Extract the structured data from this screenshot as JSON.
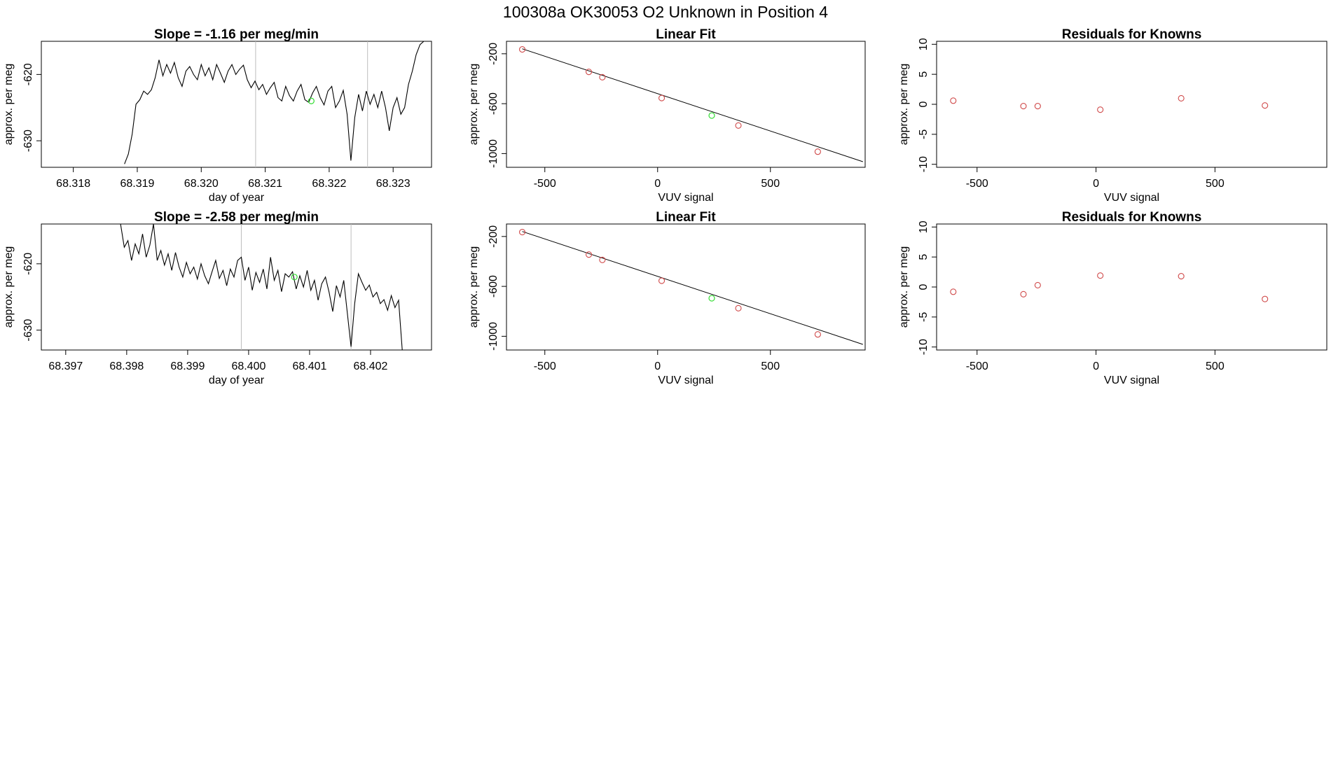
{
  "figure_title": "100308a      OK30053   O2 Unknown in Position  4",
  "colors": {
    "known": "#d04a4a",
    "unknown": "#33dd33",
    "line": "#000000",
    "marker_line": "#bdbdbd"
  },
  "chart_data": [
    {
      "type": "line",
      "title": "Slope =  -1.16  per meg/min",
      "xlabel": "day of year",
      "ylabel": "approx. per meg",
      "xlim": [
        68.3175,
        68.3236
      ],
      "ylim": [
        -634,
        -615
      ],
      "xticks": [
        68.318,
        68.319,
        68.32,
        68.321,
        68.322,
        68.323
      ],
      "xtick_labels": [
        "68.318",
        "68.319",
        "68.320",
        "68.321",
        "68.322",
        "68.323"
      ],
      "yticks": [
        -630,
        -620
      ],
      "ytick_labels": [
        "-630",
        "-620"
      ],
      "vlines": [
        68.32085,
        68.3226
      ],
      "series_x": [
        68.3188,
        68.31886,
        68.31892,
        68.31898,
        68.31904,
        68.3191,
        68.31916,
        68.31922,
        68.31928,
        68.31934,
        68.3194,
        68.31946,
        68.31952,
        68.31958,
        68.31964,
        68.3197,
        68.31976,
        68.31982,
        68.31988,
        68.31994,
        68.32,
        68.32006,
        68.32012,
        68.32018,
        68.32024,
        68.3203,
        68.32036,
        68.32042,
        68.32048,
        68.32054,
        68.3206,
        68.32066,
        68.32072,
        68.32078,
        68.32084,
        68.3209,
        68.32096,
        68.32102,
        68.32108,
        68.32114,
        68.3212,
        68.32126,
        68.32132,
        68.32138,
        68.32144,
        68.3215,
        68.32156,
        68.32162,
        68.32168,
        68.32174,
        68.3218,
        68.32186,
        68.32192,
        68.32198,
        68.32204,
        68.3221,
        68.32216,
        68.32222,
        68.32228,
        68.32234,
        68.3224,
        68.32246,
        68.32252,
        68.32258,
        68.32264,
        68.3227,
        68.32276,
        68.32282,
        68.32288,
        68.32294,
        68.323,
        68.32306,
        68.32312,
        68.32318,
        68.32324,
        68.3233,
        68.32336,
        68.32342,
        68.32348
      ],
      "series_y": [
        -633.5,
        -632.0,
        -629.0,
        -624.5,
        -623.8,
        -622.5,
        -623.0,
        -622.3,
        -620.5,
        -617.8,
        -620.2,
        -618.5,
        -619.8,
        -618.2,
        -620.5,
        -621.8,
        -619.5,
        -618.8,
        -620.0,
        -620.8,
        -618.5,
        -620.2,
        -619.0,
        -620.8,
        -618.5,
        -619.8,
        -621.2,
        -619.5,
        -618.5,
        -620.0,
        -619.2,
        -618.6,
        -620.8,
        -622.0,
        -621.0,
        -622.3,
        -621.5,
        -623.0,
        -622.0,
        -621.2,
        -623.5,
        -624.0,
        -621.8,
        -623.2,
        -624.0,
        -622.5,
        -621.5,
        -623.8,
        -624.2,
        -622.8,
        -621.8,
        -623.5,
        -624.6,
        -622.5,
        -621.8,
        -625.0,
        -624.0,
        -622.4,
        -626.0,
        -633.0,
        -626.5,
        -623.0,
        -625.5,
        -622.5,
        -624.5,
        -623.0,
        -625.0,
        -622.5,
        -625.0,
        -628.5,
        -625.0,
        -623.5,
        -626.0,
        -625.0,
        -621.5,
        -619.5,
        -617.0,
        -615.5,
        -615.0
      ],
      "unknown_point": {
        "x": 68.32172,
        "y": -624.0
      }
    },
    {
      "type": "scatter",
      "title": "Linear Fit",
      "xlabel": "VUV signal",
      "ylabel": "approx. per meg",
      "xlim": [
        -670,
        920
      ],
      "ylim": [
        -1110,
        -100
      ],
      "xticks": [
        -500,
        0,
        500
      ],
      "xtick_labels": [
        "-500",
        "0",
        "500"
      ],
      "yticks": [
        -1000,
        -600,
        -200
      ],
      "ytick_labels": [
        "-1000",
        "-600",
        "-200"
      ],
      "fit_line": {
        "x1": -600,
        "y1": -160,
        "x2": 910,
        "y2": -1065
      },
      "known_points": [
        {
          "x": -600,
          "y": -165
        },
        {
          "x": -305,
          "y": -345
        },
        {
          "x": -245,
          "y": -388
        },
        {
          "x": 18,
          "y": -555
        },
        {
          "x": 358,
          "y": -775
        },
        {
          "x": 710,
          "y": -985
        }
      ],
      "unknown_point": {
        "x": 240,
        "y": -695
      }
    },
    {
      "type": "scatter",
      "title": "Residuals for Knowns",
      "xlabel": "VUV signal",
      "ylabel": "approx. per meg",
      "xlim": [
        -670,
        970
      ],
      "ylim": [
        -10.5,
        10.5
      ],
      "xticks": [
        -500,
        0,
        500
      ],
      "xtick_labels": [
        "-500",
        "0",
        "500"
      ],
      "yticks": [
        -10,
        -5,
        0,
        5,
        10
      ],
      "ytick_labels": [
        "-10",
        "-5",
        "0",
        "5",
        "10"
      ],
      "points": [
        {
          "x": -600,
          "y": 0.6
        },
        {
          "x": -305,
          "y": -0.3
        },
        {
          "x": -245,
          "y": -0.3
        },
        {
          "x": 18,
          "y": -0.9
        },
        {
          "x": 358,
          "y": 1.0
        },
        {
          "x": 710,
          "y": -0.2
        }
      ]
    },
    {
      "type": "line",
      "title": "Slope =  -2.58  per meg/min",
      "xlabel": "day of year",
      "ylabel": "approx. per meg",
      "xlim": [
        68.3966,
        68.403
      ],
      "ylim": [
        -633,
        -614
      ],
      "xticks": [
        68.397,
        68.398,
        68.399,
        68.4,
        68.401,
        68.402
      ],
      "xtick_labels": [
        "68.397",
        "68.398",
        "68.399",
        "68.400",
        "68.401",
        "68.402"
      ],
      "yticks": [
        -630,
        -620
      ],
      "ytick_labels": [
        "-630",
        "-620"
      ],
      "vlines": [
        68.39988,
        68.40168
      ],
      "series_x": [
        68.3979,
        68.39796,
        68.39802,
        68.39808,
        68.39814,
        68.3982,
        68.39826,
        68.39832,
        68.39838,
        68.39844,
        68.3985,
        68.39856,
        68.39862,
        68.39868,
        68.39874,
        68.3988,
        68.39886,
        68.39892,
        68.39898,
        68.39904,
        68.3991,
        68.39916,
        68.39922,
        68.39928,
        68.39934,
        68.3994,
        68.39946,
        68.39952,
        68.39958,
        68.39964,
        68.3997,
        68.39976,
        68.39982,
        68.39988,
        68.39994,
        68.4,
        68.40006,
        68.40012,
        68.40018,
        68.40024,
        68.4003,
        68.40036,
        68.40042,
        68.40048,
        68.40054,
        68.4006,
        68.40066,
        68.40072,
        68.40078,
        68.40084,
        68.4009,
        68.40096,
        68.40102,
        68.40108,
        68.40114,
        68.4012,
        68.40126,
        68.40132,
        68.40138,
        68.40144,
        68.4015,
        68.40156,
        68.40162,
        68.40168,
        68.40174,
        68.4018,
        68.40186,
        68.40192,
        68.40198,
        68.40204,
        68.4021,
        68.40216,
        68.40222,
        68.40228,
        68.40234,
        68.4024,
        68.40246,
        68.40252
      ],
      "series_y": [
        -614.0,
        -617.5,
        -616.5,
        -619.5,
        -617.0,
        -618.5,
        -615.5,
        -619.0,
        -617.2,
        -614.0,
        -619.5,
        -618.0,
        -620.2,
        -618.5,
        -621.0,
        -618.3,
        -620.5,
        -622.0,
        -619.8,
        -621.5,
        -620.5,
        -622.3,
        -620.0,
        -621.8,
        -623.0,
        -621.2,
        -619.5,
        -622.2,
        -621.0,
        -623.3,
        -620.8,
        -622.0,
        -619.5,
        -619.0,
        -622.5,
        -620.5,
        -624.0,
        -621.3,
        -622.8,
        -620.8,
        -623.8,
        -619.0,
        -622.5,
        -621.0,
        -624.2,
        -621.5,
        -622.0,
        -621.2,
        -623.8,
        -621.8,
        -623.5,
        -621.0,
        -624.0,
        -622.5,
        -625.5,
        -623.0,
        -622.0,
        -624.3,
        -627.2,
        -623.3,
        -625.0,
        -622.5,
        -627.5,
        -632.5,
        -626.0,
        -621.5,
        -622.8,
        -624.0,
        -623.2,
        -625.0,
        -624.3,
        -626.0,
        -625.4,
        -627.0,
        -624.8,
        -626.6,
        -625.5,
        -633.0
      ],
      "unknown_point": {
        "x": 68.40075,
        "y": -622.0
      }
    },
    {
      "type": "scatter",
      "title": "Linear Fit",
      "xlabel": "VUV signal",
      "ylabel": "approx. per meg",
      "xlim": [
        -670,
        920
      ],
      "ylim": [
        -1110,
        -100
      ],
      "xticks": [
        -500,
        0,
        500
      ],
      "xtick_labels": [
        "-500",
        "0",
        "500"
      ],
      "yticks": [
        -1000,
        -600,
        -200
      ],
      "ytick_labels": [
        "-1000",
        "-600",
        "-200"
      ],
      "fit_line": {
        "x1": -600,
        "y1": -160,
        "x2": 910,
        "y2": -1065
      },
      "known_points": [
        {
          "x": -600,
          "y": -165
        },
        {
          "x": -305,
          "y": -345
        },
        {
          "x": -245,
          "y": -388
        },
        {
          "x": 18,
          "y": -555
        },
        {
          "x": 358,
          "y": -775
        },
        {
          "x": 710,
          "y": -985
        }
      ],
      "unknown_point": {
        "x": 240,
        "y": -695
      }
    },
    {
      "type": "scatter",
      "title": "Residuals for Knowns",
      "xlabel": "VUV signal",
      "ylabel": "approx. per meg",
      "xlim": [
        -670,
        970
      ],
      "ylim": [
        -10.5,
        10.5
      ],
      "xticks": [
        -500,
        0,
        500
      ],
      "xtick_labels": [
        "-500",
        "0",
        "500"
      ],
      "yticks": [
        -10,
        -5,
        0,
        5,
        10
      ],
      "ytick_labels": [
        "-10",
        "-5",
        "0",
        "5",
        "10"
      ],
      "points": [
        {
          "x": -600,
          "y": -0.8
        },
        {
          "x": -305,
          "y": -1.2
        },
        {
          "x": -245,
          "y": 0.3
        },
        {
          "x": 18,
          "y": 1.9
        },
        {
          "x": 358,
          "y": 1.8
        },
        {
          "x": 710,
          "y": -2.0
        }
      ]
    }
  ]
}
